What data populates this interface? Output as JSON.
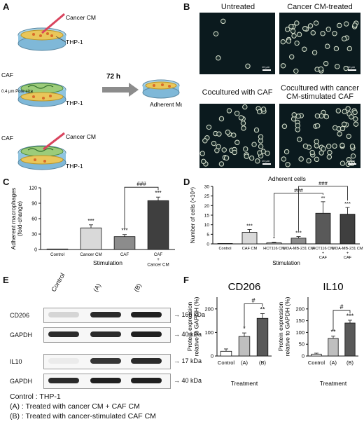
{
  "panels": {
    "A": {
      "letter": "A",
      "labels": {
        "cancer_cm_1": "Cancer CM",
        "thp1_1": "THP-1",
        "caf_2": "CAF",
        "pore": "0.4 μm Pore size",
        "thp1_2": "THP-1",
        "caf_3": "CAF",
        "cancer_cm_3": "Cancer CM",
        "thp1_3": "THP-1",
        "time": "72 h",
        "result": "Adherent Mφ"
      }
    },
    "B": {
      "letter": "B",
      "titles": [
        "Untreated",
        "Cancer CM-treated",
        "Cocultured with CAF",
        "Cocultured with cancer CM-stimulated CAF"
      ],
      "scale": "10 μm"
    },
    "C": {
      "letter": "C",
      "chart_data": {
        "type": "bar",
        "ylabel": "Adherent macrophages (fold-change)",
        "xlabel": "Stimulation",
        "ylim": [
          0,
          120
        ],
        "yticks": [
          0,
          30,
          60,
          90,
          120
        ],
        "categories": [
          "Control",
          "Cancer CM",
          "CAF",
          "CAF + Cancer CM"
        ],
        "values": [
          1,
          42,
          25,
          95
        ],
        "errors": [
          0,
          6,
          4,
          7
        ],
        "colors": [
          "#ffffff",
          "#d9d9d9",
          "#8c8c8c",
          "#3f3f3f"
        ],
        "significance": [
          "",
          "***",
          "***",
          "***"
        ],
        "comparisons": [
          {
            "from": 2,
            "to": 3,
            "label": "###"
          }
        ]
      }
    },
    "D": {
      "letter": "D",
      "chart_data": {
        "type": "bar",
        "title": "Adherent cells",
        "ylabel": "Number of cells (×10⁴)",
        "xlabel": "Stimulation",
        "ylim": [
          0,
          30
        ],
        "yticks": [
          0,
          5,
          10,
          15,
          20,
          25,
          30
        ],
        "categories": [
          "Control",
          "CAF CM",
          "HCT116 CM",
          "MDA-MB-231 CM",
          "HCT116 CM + CAF",
          "MDA-MB-231 CM + CAF"
        ],
        "values": [
          0.2,
          6,
          0.6,
          3,
          16,
          15.5
        ],
        "errors": [
          0,
          1.5,
          0.3,
          0.8,
          6,
          3.5
        ],
        "colors": [
          "#ffffff",
          "#d9d9d9",
          "#bfbfbf",
          "#8c8c8c",
          "#595959",
          "#3f3f3f"
        ],
        "significance": [
          "",
          "***",
          "*",
          "***",
          "**",
          "***"
        ],
        "comparisons": [
          {
            "from": 2,
            "to": 4,
            "label": "###"
          },
          {
            "from": 3,
            "to": 5,
            "label": "###"
          }
        ]
      }
    },
    "E": {
      "letter": "E",
      "lanes": [
        "Control",
        "(A)",
        "(B)"
      ],
      "rows": [
        {
          "name": "CD206",
          "kda": "166 kDa"
        },
        {
          "name": "GAPDH",
          "kda": "40 kDa"
        },
        {
          "name": "IL10",
          "kda": "17 kDa"
        },
        {
          "name": "GAPDH",
          "kda": "40 kDa"
        }
      ]
    },
    "F": {
      "letter": "F",
      "chart_data": [
        {
          "type": "bar",
          "title": "CD206",
          "ylabel": "Protein expression relative to GAPDH (%)",
          "xlabel": "Treatment",
          "ylim": [
            0,
            250
          ],
          "yticks": [
            0,
            100,
            200
          ],
          "categories": [
            "Control",
            "(A)",
            "(B)"
          ],
          "values": [
            20,
            83,
            160
          ],
          "errors": [
            10,
            15,
            20
          ],
          "colors": [
            "#ffffff",
            "#bfbfbf",
            "#595959"
          ],
          "significance": [
            "",
            "*",
            "**"
          ],
          "comparisons": [
            {
              "from": 1,
              "to": 2,
              "label": "#"
            }
          ]
        },
        {
          "type": "bar",
          "title": "IL10",
          "ylabel": "Protein expression relative to GAPDH (%)",
          "xlabel": "Treatment",
          "ylim": [
            0,
            250
          ],
          "yticks": [
            0,
            50,
            100,
            150,
            200
          ],
          "categories": [
            "Control",
            "(A)",
            "(B)"
          ],
          "values": [
            8,
            75,
            140
          ],
          "errors": [
            4,
            10,
            12
          ],
          "colors": [
            "#ffffff",
            "#bfbfbf",
            "#595959"
          ],
          "significance": [
            "",
            "**",
            "***"
          ],
          "comparisons": [
            {
              "from": 1,
              "to": 2,
              "label": "#"
            }
          ]
        }
      ]
    }
  },
  "footer": {
    "line1": "Control : THP-1",
    "line2": "(A) : Treated with cancer CM + CAF CM",
    "line3": "(B) : Treated with cancer-stimulated CAF CM"
  }
}
